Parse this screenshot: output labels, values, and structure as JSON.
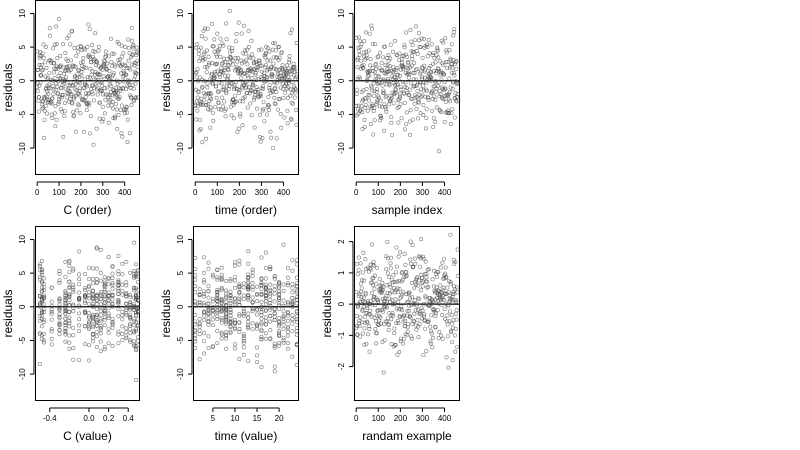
{
  "figure": {
    "point_color": "#4d4d4d",
    "points_per_panel": 480
  },
  "chart_data": [
    {
      "type": "scatter",
      "id": "c-order",
      "xlabel": "C (order)",
      "ylabel": "residuals",
      "xlim": [
        -10,
        470
      ],
      "ylim": [
        -14,
        12
      ],
      "xticks": [
        0,
        100,
        200,
        300,
        400
      ],
      "xtick_labels": [
        "0",
        "100",
        "200",
        "300",
        "400"
      ],
      "yticks": [
        -10,
        -5,
        0,
        5,
        10
      ],
      "ytick_labels": [
        "-10",
        "-5",
        "0",
        "5",
        "10"
      ],
      "hline": 0,
      "grid": false,
      "seed": 11,
      "x_kind": "index",
      "x_range": [
        0,
        460
      ],
      "y_sd": 4.5,
      "y_min": -13,
      "y_max": 11.5
    },
    {
      "type": "scatter",
      "id": "time-order",
      "xlabel": "time (order)",
      "ylabel": "residuals",
      "xlim": [
        -10,
        470
      ],
      "ylim": [
        -14,
        12
      ],
      "xticks": [
        0,
        100,
        200,
        300,
        400
      ],
      "xtick_labels": [
        "0",
        "100",
        "200",
        "300",
        "400"
      ],
      "yticks": [
        -10,
        -5,
        0,
        5,
        10
      ],
      "ytick_labels": [
        "-10",
        "-5",
        "0",
        "5",
        "10"
      ],
      "hline": 0,
      "grid": false,
      "seed": 23,
      "x_kind": "index",
      "x_range": [
        0,
        460
      ],
      "y_sd": 4.5,
      "y_min": -13,
      "y_max": 11.5
    },
    {
      "type": "scatter",
      "id": "sample-index",
      "xlabel": "sample index",
      "ylabel": "residuals",
      "xlim": [
        -10,
        470
      ],
      "ylim": [
        -14,
        12
      ],
      "xticks": [
        0,
        100,
        200,
        300,
        400
      ],
      "xtick_labels": [
        "0",
        "100",
        "200",
        "300",
        "400"
      ],
      "yticks": [
        -10,
        -5,
        0,
        5,
        10
      ],
      "ytick_labels": [
        "-10",
        "-5",
        "0",
        "5",
        "10"
      ],
      "hline": 0,
      "grid": false,
      "seed": 37,
      "x_kind": "index",
      "x_range": [
        0,
        460
      ],
      "y_sd": 4.5,
      "y_min": -13,
      "y_max": 11.5
    },
    {
      "type": "scatter",
      "id": "c-value",
      "xlabel": "C (value)",
      "ylabel": "residuals",
      "xlim": [
        -0.55,
        0.52
      ],
      "ylim": [
        -14,
        12
      ],
      "xticks": [
        -0.4,
        0.0,
        0.2,
        0.4
      ],
      "xtick_labels": [
        "-0.4",
        "0.0",
        "0.2",
        "0.4"
      ],
      "yticks": [
        -10,
        -5,
        0,
        5,
        10
      ],
      "ytick_labels": [
        "-10",
        "-5",
        "0",
        "5",
        "10"
      ],
      "hline": 0,
      "grid": false,
      "seed": 41,
      "x_kind": "discrete",
      "x_levels": [
        -0.5,
        -0.48,
        -0.46,
        -0.38,
        -0.3,
        -0.24,
        -0.2,
        -0.16,
        -0.1,
        -0.04,
        0.0,
        0.04,
        0.08,
        0.12,
        0.16,
        0.2,
        0.24,
        0.3,
        0.34,
        0.38,
        0.42,
        0.46,
        0.48,
        0.5
      ],
      "y_sd": 4.5,
      "y_min": -13,
      "y_max": 11.5
    },
    {
      "type": "scatter",
      "id": "time-value",
      "xlabel": "time (value)",
      "ylabel": "residuals",
      "xlim": [
        0.5,
        24.5
      ],
      "ylim": [
        -14,
        12
      ],
      "xticks": [
        5,
        10,
        15,
        20
      ],
      "xtick_labels": [
        "5",
        "10",
        "15",
        "20"
      ],
      "yticks": [
        -10,
        -5,
        0,
        5,
        10
      ],
      "ytick_labels": [
        "-10",
        "-5",
        "0",
        "5",
        "10"
      ],
      "hline": 0,
      "grid": false,
      "seed": 53,
      "x_kind": "discrete",
      "x_levels": [
        1,
        2,
        3,
        4,
        5,
        6,
        7,
        8,
        9,
        10,
        11,
        12,
        13,
        14,
        15,
        16,
        17,
        18,
        19,
        20,
        21,
        22,
        23,
        24
      ],
      "y_sd": 4.5,
      "y_min": -13,
      "y_max": 11.5
    },
    {
      "type": "scatter",
      "id": "random-example",
      "xlabel": "randam example",
      "ylabel": "residuals",
      "xlim": [
        -10,
        470
      ],
      "ylim": [
        -3.1,
        2.5
      ],
      "xticks": [
        0,
        100,
        200,
        300,
        400
      ],
      "xtick_labels": [
        "0",
        "100",
        "200",
        "300",
        "400"
      ],
      "yticks": [
        -2,
        -1,
        0,
        1,
        2
      ],
      "ytick_labels": [
        "-2",
        "-1",
        "0",
        "1",
        "2"
      ],
      "hline": 0,
      "grid": false,
      "seed": 67,
      "x_kind": "index",
      "x_range": [
        0,
        460
      ],
      "y_sd": 1.0,
      "y_min": -2.9,
      "y_max": 2.3
    }
  ]
}
